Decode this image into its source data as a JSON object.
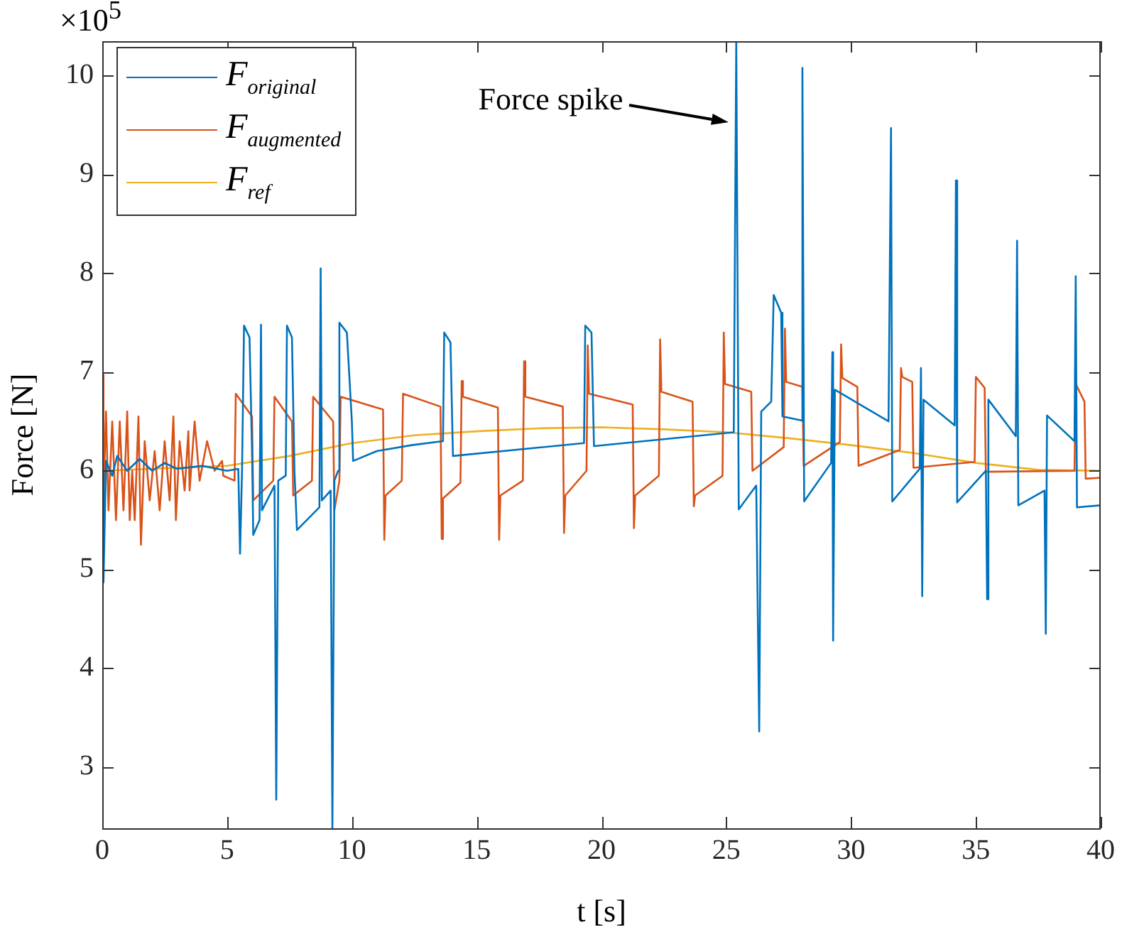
{
  "chart_data": {
    "type": "line",
    "xlabel": "t [s]",
    "ylabel": "Force [N]",
    "xlim": [
      0,
      40
    ],
    "xticks": [
      0,
      5,
      10,
      15,
      20,
      25,
      30,
      35,
      40
    ],
    "ylim": [
      2.38,
      10.35
    ],
    "yticks": [
      3,
      4,
      5,
      6,
      7,
      8,
      9,
      10
    ],
    "grid": false,
    "legend": "top left",
    "marker": "none",
    "line_style": "solid",
    "annotations": [
      "×10$^{5}$",
      "Force spike"
    ],
    "series": [
      {
        "name": "F$_{original}$",
        "color": "#0072bd",
        "x": [
          0,
          0.05,
          0.15,
          0.4,
          0.6,
          1.0,
          1.5,
          2.0,
          2.5,
          3.0,
          4.0,
          5.0,
          5.45,
          5.52,
          5.6,
          5.68,
          5.9,
          6.0,
          6.05,
          6.3,
          6.36,
          6.4,
          6.9,
          6.97,
          7.05,
          7.35,
          7.4,
          7.6,
          7.7,
          7.8,
          8.7,
          8.75,
          8.8,
          9.15,
          9.22,
          9.3,
          9.45,
          9.5,
          9.8,
          10.0,
          10.05,
          11.0,
          12.4,
          13.65,
          13.7,
          13.95,
          14.05,
          19.3,
          19.35,
          19.6,
          19.7,
          25.3,
          25.4,
          25.5,
          26.2,
          26.32,
          26.4,
          26.8,
          26.9,
          27.2,
          27.25,
          28.0,
          28.05,
          28.12,
          29.2,
          29.25,
          29.28,
          29.35,
          31.5,
          31.6,
          31.65,
          32.75,
          32.8,
          32.85,
          32.9,
          34.15,
          34.2,
          34.25,
          35.4,
          35.45,
          35.5,
          36.6,
          36.65,
          36.7,
          37.75,
          37.8,
          37.85,
          38.95,
          39.0,
          39.05,
          40
        ],
        "values": [
          6.0,
          4.87,
          6.1,
          5.95,
          6.15,
          6.0,
          6.12,
          6.0,
          6.08,
          6.02,
          6.05,
          6.0,
          6.02,
          5.16,
          6.0,
          7.47,
          7.35,
          6.2,
          5.35,
          5.5,
          7.48,
          5.6,
          5.85,
          2.67,
          5.9,
          5.95,
          7.47,
          7.35,
          6.0,
          5.4,
          5.63,
          8.05,
          5.7,
          5.8,
          2.38,
          5.9,
          6.0,
          7.5,
          7.4,
          6.5,
          6.1,
          6.2,
          6.26,
          6.3,
          7.4,
          7.3,
          6.15,
          6.28,
          7.47,
          7.4,
          6.25,
          6.39,
          10.35,
          5.61,
          5.85,
          3.36,
          6.6,
          6.7,
          7.78,
          7.6,
          6.55,
          6.51,
          10.08,
          5.69,
          6.08,
          7.2,
          4.28,
          6.82,
          6.5,
          9.47,
          5.69,
          6.02,
          7.04,
          4.73,
          6.72,
          6.46,
          8.94,
          5.68,
          6.0,
          4.7,
          6.72,
          6.35,
          8.33,
          5.65,
          5.8,
          4.35,
          6.56,
          6.3,
          7.97,
          5.63,
          5.65
        ]
      },
      {
        "name": "F$_{augmented}$",
        "color": "#d95319",
        "x": [
          0,
          0.05,
          0.15,
          0.25,
          0.4,
          0.55,
          0.7,
          0.85,
          1.0,
          1.1,
          1.2,
          1.3,
          1.45,
          1.55,
          1.7,
          1.9,
          2.1,
          2.3,
          2.5,
          2.7,
          2.85,
          2.95,
          3.1,
          3.3,
          3.45,
          3.5,
          3.7,
          3.9,
          4.2,
          4.5,
          4.8,
          4.85,
          5.3,
          5.35,
          6.0,
          6.05,
          6.85,
          6.9,
          7.6,
          7.65,
          8.4,
          8.45,
          9.25,
          9.3,
          9.5,
          9.55,
          11.25,
          11.3,
          11.35,
          12.0,
          12.05,
          13.55,
          13.6,
          13.65,
          14.35,
          14.4,
          14.45,
          15.85,
          15.9,
          15.95,
          16.85,
          16.9,
          16.95,
          18.45,
          18.5,
          18.55,
          19.4,
          19.45,
          19.5,
          21.25,
          21.3,
          21.35,
          22.3,
          22.35,
          22.4,
          23.65,
          23.7,
          23.75,
          24.85,
          24.9,
          24.95,
          26.0,
          26.05,
          27.3,
          27.35,
          27.4,
          28.05,
          28.1,
          29.55,
          29.6,
          29.65,
          30.25,
          30.3,
          31.95,
          32.0,
          32.05,
          32.45,
          32.5,
          34.95,
          35.0,
          35.35,
          35.4,
          38.95,
          39.0,
          39.35,
          39.4,
          40
        ],
        "values": [
          6.97,
          5.7,
          6.6,
          5.6,
          6.5,
          5.5,
          6.5,
          5.6,
          6.6,
          5.5,
          6.0,
          5.5,
          6.55,
          5.25,
          6.3,
          5.7,
          6.2,
          5.6,
          6.3,
          5.7,
          6.55,
          5.5,
          6.3,
          5.8,
          6.4,
          5.8,
          6.5,
          5.9,
          6.3,
          6.0,
          6.1,
          5.95,
          5.9,
          6.78,
          6.55,
          5.7,
          5.9,
          6.75,
          6.5,
          5.75,
          5.9,
          6.75,
          6.5,
          5.6,
          5.9,
          6.75,
          6.62,
          5.3,
          5.75,
          5.9,
          6.78,
          6.65,
          5.31,
          5.72,
          5.88,
          6.91,
          6.75,
          6.64,
          5.3,
          5.75,
          5.9,
          7.11,
          6.75,
          6.65,
          5.37,
          5.75,
          6.0,
          7.27,
          6.78,
          6.67,
          5.42,
          5.75,
          5.95,
          7.33,
          6.8,
          6.7,
          5.64,
          5.75,
          5.95,
          7.4,
          6.88,
          6.8,
          6.0,
          6.24,
          7.44,
          6.9,
          6.85,
          6.05,
          6.29,
          7.28,
          6.94,
          6.85,
          6.05,
          6.21,
          7.04,
          6.95,
          6.9,
          6.03,
          6.09,
          6.95,
          6.84,
          5.99,
          6.0,
          6.88,
          6.7,
          5.92,
          5.93
        ]
      },
      {
        "name": "F$_{ref}$",
        "color": "#edb120",
        "x": [
          0,
          5,
          7.5,
          10,
          12.5,
          15,
          17.5,
          20,
          22.5,
          25,
          27.5,
          30,
          32.5,
          35,
          37.5,
          40
        ],
        "values": [
          6.0,
          6.05,
          6.15,
          6.28,
          6.36,
          6.4,
          6.43,
          6.44,
          6.42,
          6.39,
          6.33,
          6.26,
          6.18,
          6.08,
          6.01,
          6.0
        ]
      }
    ]
  }
}
